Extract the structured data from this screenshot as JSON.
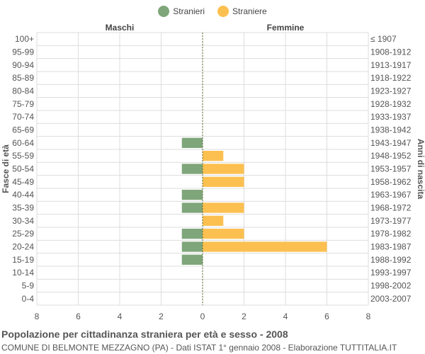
{
  "legend": {
    "male_label": "Stranieri",
    "female_label": "Straniere"
  },
  "colors": {
    "male": "#7fa67a",
    "female": "#fcc050",
    "grid": "#dddddd",
    "axis": "#555555",
    "center_line": "#556b2f"
  },
  "caption": {
    "title": "Popolazione per cittadinanza straniera per età e sesso - 2008",
    "subtitle": "COMUNE DI BELMONTE MEZZAGNO (PA) - Dati ISTAT 1° gennaio 2008 - Elaborazione TUTTITALIA.IT"
  },
  "chart_data": {
    "type": "bar",
    "orientation": "horizontal-pyramid",
    "left_header": "Maschi",
    "right_header": "Femmine",
    "ylabel_left": "Fasce di età",
    "ylabel_right": "Anni di nascita",
    "age_groups": [
      "100+",
      "95-99",
      "90-94",
      "85-89",
      "80-84",
      "75-79",
      "70-74",
      "65-69",
      "60-64",
      "55-59",
      "50-54",
      "45-49",
      "40-44",
      "35-39",
      "30-34",
      "25-29",
      "20-24",
      "15-19",
      "10-14",
      "5-9",
      "0-4"
    ],
    "birth_years": [
      "≤ 1907",
      "1908-1912",
      "1913-1917",
      "1918-1922",
      "1923-1927",
      "1928-1932",
      "1933-1937",
      "1938-1942",
      "1943-1947",
      "1948-1952",
      "1953-1957",
      "1958-1962",
      "1963-1967",
      "1968-1972",
      "1973-1977",
      "1978-1982",
      "1983-1987",
      "1988-1992",
      "1993-1997",
      "1998-2002",
      "2003-2007"
    ],
    "series": [
      {
        "name": "Stranieri",
        "side": "left",
        "values": [
          0,
          0,
          0,
          0,
          0,
          0,
          0,
          0,
          1,
          0,
          1,
          0,
          1,
          1,
          0,
          1,
          1,
          1,
          0,
          0,
          0
        ]
      },
      {
        "name": "Straniere",
        "side": "right",
        "values": [
          0,
          0,
          0,
          0,
          0,
          0,
          0,
          0,
          0,
          1,
          2,
          2,
          0,
          2,
          1,
          2,
          6,
          0,
          0,
          0,
          0
        ]
      }
    ],
    "xlim": [
      -8,
      8
    ],
    "xticks": [
      8,
      6,
      4,
      2,
      0,
      2,
      4,
      6,
      8
    ],
    "grid": true,
    "legend_position": "top-center"
  }
}
